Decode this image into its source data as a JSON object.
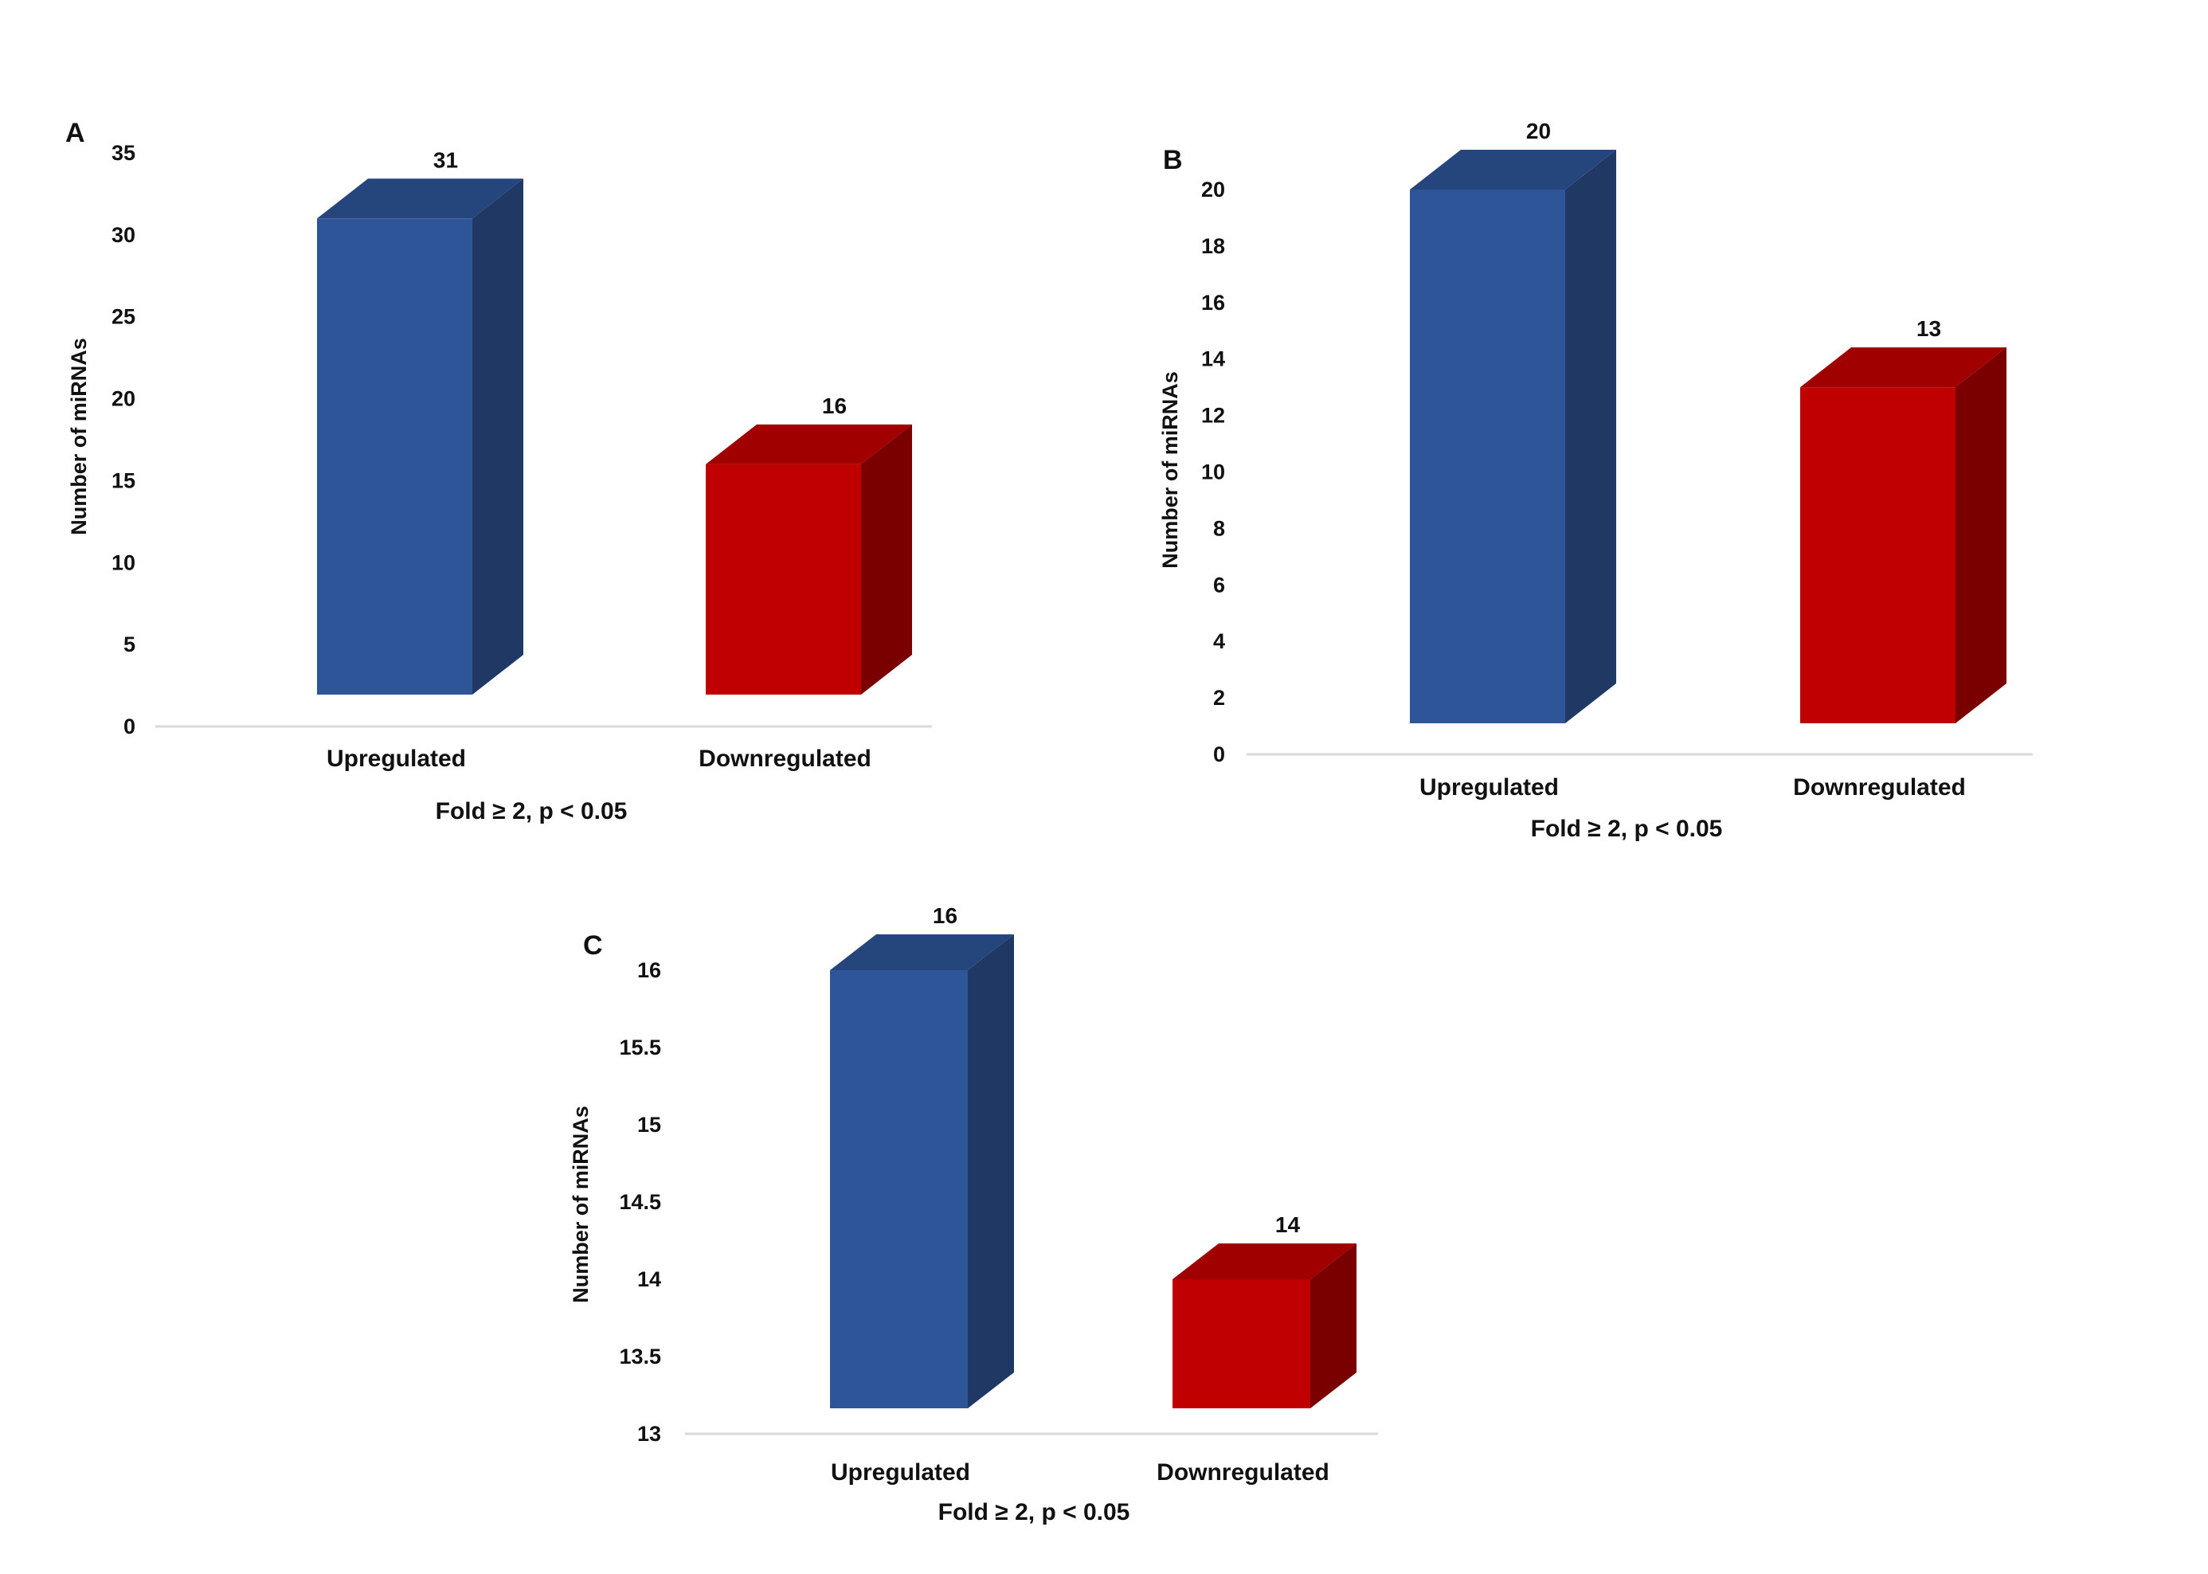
{
  "figure": {
    "colors": {
      "upregulated_front": "#2E5597",
      "upregulated_side": "#1F3864",
      "upregulated_top": "#25467C",
      "downregulated_front": "#C00000",
      "downregulated_side": "#7A0000",
      "downregulated_top": "#A00000",
      "axis": "#D9D9D9",
      "text": "#111111"
    }
  },
  "chart_data": [
    {
      "panel": "A",
      "type": "bar",
      "style": "3d-column",
      "categories": [
        "Upregulated",
        "Downregulated"
      ],
      "values": [
        31,
        16
      ],
      "data_labels": [
        "31",
        "16"
      ],
      "xlabel": "Fold ≥ 2, p < 0.05",
      "ylabel": "Number of miRNAs",
      "ylim": [
        0,
        35
      ],
      "yticks": [
        0,
        5,
        10,
        15,
        20,
        25,
        30,
        35
      ],
      "ytick_labels": [
        "0",
        "5",
        "10",
        "15",
        "20",
        "25",
        "30",
        "35"
      ],
      "grid": false
    },
    {
      "panel": "B",
      "type": "bar",
      "style": "3d-column",
      "categories": [
        "Upregulated",
        "Downregulated"
      ],
      "values": [
        20,
        13
      ],
      "data_labels": [
        "20",
        "13"
      ],
      "xlabel": "Fold ≥ 2, p < 0.05",
      "ylabel": "Number of miRNAs",
      "ylim": [
        0,
        20
      ],
      "yticks": [
        0,
        2,
        4,
        6,
        8,
        10,
        12,
        14,
        16,
        18,
        20
      ],
      "ytick_labels": [
        "0",
        "2",
        "4",
        "6",
        "8",
        "10",
        "12",
        "14",
        "16",
        "18",
        "20"
      ],
      "grid": false
    },
    {
      "panel": "C",
      "type": "bar",
      "style": "3d-column",
      "categories": [
        "Upregulated",
        "Downregulated"
      ],
      "values": [
        16,
        14
      ],
      "data_labels": [
        "16",
        "14"
      ],
      "xlabel": "Fold ≥ 2, p < 0.05",
      "ylabel": "Number of miRNAs",
      "ylim": [
        13,
        16
      ],
      "yticks": [
        13,
        13.5,
        14,
        14.5,
        15,
        15.5,
        16
      ],
      "ytick_labels": [
        "13",
        "13.5",
        "14",
        "14.5",
        "15",
        "15.5",
        "16"
      ],
      "grid": false
    }
  ]
}
